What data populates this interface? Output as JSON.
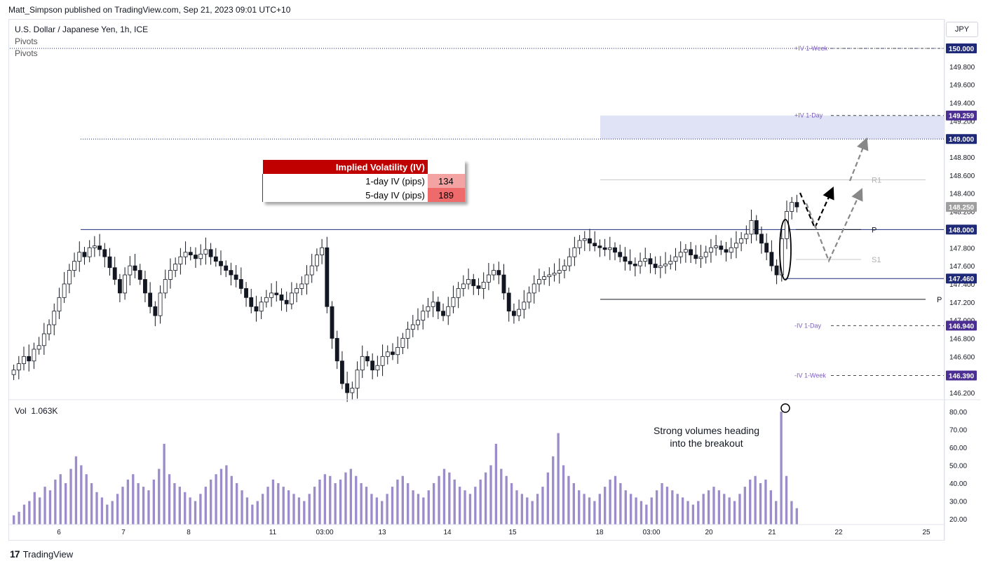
{
  "header": {
    "publisher": "Matt_Simpson published on TradingView.com, Sep 21, 2023 09:01 UTC+10",
    "symbol": "U.S. Dollar / Japanese Yen, 1h, ICE",
    "indicator1": "Pivots",
    "indicator2": "Pivots",
    "currency_button": "JPY"
  },
  "iv_table": {
    "title": "Implied Volatility (IV)",
    "row1_label": "1-day IV (pips)",
    "row1_value": "134",
    "row2_label": "5-day IV (pips)",
    "row2_value": "189"
  },
  "volume": {
    "label": "Vol",
    "value": "1.063K",
    "annotation_line1": "Strong volumes heading",
    "annotation_line2": "into the breakout"
  },
  "footer": {
    "brand": "TradingView"
  },
  "colors": {
    "candle": "#131722",
    "volume": "#9c8cc9",
    "level_line": "#1e2a78",
    "iv_label": "#7b5cc0",
    "iv_zone": "#dfe3f5",
    "iv_header": "#c00000"
  },
  "chart_data": [
    {
      "type": "candlestick",
      "title": "U.S. Dollar / Japanese Yen, 1h, ICE",
      "price_axis": {
        "ticks": [
          "149.800",
          "149.600",
          "149.400",
          "149.200",
          "149.000",
          "148.800",
          "148.600",
          "148.400",
          "148.200",
          "148.000",
          "147.800",
          "147.600",
          "147.400",
          "147.200",
          "147.000",
          "146.800",
          "146.600",
          "146.400",
          "146.200"
        ],
        "ylim": [
          146.1,
          150.2
        ]
      },
      "time_axis": {
        "ticks": [
          "6",
          "7",
          "8",
          "11",
          "03:00",
          "13",
          "14",
          "15",
          "18",
          "03:00",
          "20",
          "21",
          "22",
          "25"
        ]
      },
      "price_labels": [
        {
          "value": "150.000",
          "style": "dark"
        },
        {
          "value": "149.259",
          "style": "purple"
        },
        {
          "value": "149.000",
          "style": "dark"
        },
        {
          "value": "148.250",
          "style": "gray"
        },
        {
          "value": "148.000",
          "style": "dark"
        },
        {
          "value": "147.460",
          "style": "dark"
        },
        {
          "value": "146.940",
          "style": "purple"
        },
        {
          "value": "146.390",
          "style": "purple"
        }
      ],
      "levels": [
        {
          "price": 150.0,
          "style": "dotted",
          "label": ""
        },
        {
          "price": 149.0,
          "style": "dotted",
          "label": ""
        },
        {
          "price": 148.0,
          "style": "solid",
          "label": ""
        },
        {
          "price": 147.46,
          "style": "solid-short",
          "label": ""
        }
      ],
      "iv_levels": [
        {
          "price": 150.0,
          "label": "+IV 1-Week"
        },
        {
          "price": 149.259,
          "label": "+IV 1-Day"
        },
        {
          "price": 146.94,
          "label": "-IV 1-Day"
        },
        {
          "price": 146.39,
          "label": "-IV 1-Week"
        }
      ],
      "pivots": [
        {
          "price": 148.55,
          "label": "R1"
        },
        {
          "price": 148.0,
          "label": "P"
        },
        {
          "price": 147.67,
          "label": "S1"
        },
        {
          "price": 147.23,
          "label": "P"
        }
      ],
      "series_close": [
        146.45,
        146.52,
        146.6,
        146.55,
        146.68,
        146.72,
        146.85,
        146.95,
        147.1,
        147.25,
        147.4,
        147.55,
        147.65,
        147.75,
        147.7,
        147.8,
        147.82,
        147.78,
        147.7,
        147.58,
        147.45,
        147.3,
        147.5,
        147.6,
        147.55,
        147.45,
        147.3,
        147.15,
        147.05,
        147.3,
        147.45,
        147.55,
        147.62,
        147.7,
        147.75,
        147.72,
        147.68,
        147.73,
        147.78,
        147.7,
        147.65,
        147.6,
        147.55,
        147.5,
        147.45,
        147.35,
        147.25,
        147.15,
        147.1,
        147.2,
        147.25,
        147.3,
        147.28,
        147.22,
        147.18,
        147.3,
        147.35,
        147.4,
        147.5,
        147.6,
        147.72,
        147.8,
        147.15,
        146.8,
        146.55,
        146.3,
        146.2,
        146.25,
        146.45,
        146.6,
        146.55,
        146.45,
        146.5,
        146.6,
        146.65,
        146.62,
        146.7,
        146.8,
        146.9,
        146.95,
        147.0,
        147.1,
        147.15,
        147.2,
        147.1,
        147.05,
        147.15,
        147.25,
        147.35,
        147.4,
        147.45,
        147.38,
        147.35,
        147.42,
        147.5,
        147.55,
        147.5,
        147.3,
        147.1,
        147.05,
        147.12,
        147.2,
        147.3,
        147.4,
        147.45,
        147.48,
        147.5,
        147.52,
        147.55,
        147.6,
        147.7,
        147.8,
        147.88,
        147.9,
        147.85,
        147.82,
        147.8,
        147.78,
        147.8,
        147.75,
        147.7,
        147.65,
        147.62,
        147.6,
        147.65,
        147.68,
        147.62,
        147.58,
        147.6,
        147.62,
        147.65,
        147.7,
        147.75,
        147.78,
        147.72,
        147.68,
        147.7,
        147.75,
        147.8,
        147.82,
        147.78,
        147.75,
        147.8,
        147.85,
        147.9,
        147.95,
        148.1,
        147.95,
        147.85,
        147.75,
        147.6,
        147.5,
        147.9,
        148.2,
        148.3,
        148.25
      ]
    },
    {
      "type": "bar",
      "title": "Vol",
      "y_axis": {
        "ticks": [
          "80.00",
          "70.00",
          "60.00",
          "50.00",
          "40.00",
          "30.00",
          "20.00"
        ],
        "ylim": [
          18,
          84
        ]
      },
      "values": [
        22,
        24,
        28,
        30,
        35,
        32,
        38,
        36,
        42,
        45,
        40,
        48,
        55,
        50,
        45,
        40,
        35,
        32,
        28,
        30,
        34,
        38,
        42,
        45,
        40,
        38,
        36,
        42,
        48,
        62,
        45,
        40,
        38,
        35,
        32,
        30,
        34,
        38,
        42,
        45,
        48,
        50,
        44,
        40,
        36,
        32,
        28,
        30,
        34,
        38,
        42,
        40,
        38,
        36,
        34,
        32,
        30,
        34,
        38,
        42,
        45,
        44,
        40,
        42,
        46,
        48,
        44,
        40,
        38,
        34,
        32,
        30,
        34,
        38,
        42,
        44,
        40,
        36,
        34,
        32,
        36,
        40,
        44,
        48,
        46,
        42,
        38,
        36,
        34,
        38,
        42,
        46,
        50,
        62,
        48,
        44,
        40,
        36,
        34,
        32,
        30,
        34,
        38,
        46,
        55,
        68,
        50,
        44,
        40,
        36,
        34,
        32,
        30,
        34,
        38,
        42,
        44,
        40,
        36,
        34,
        32,
        30,
        28,
        32,
        36,
        40,
        38,
        36,
        34,
        32,
        30,
        28,
        30,
        34,
        36,
        38,
        36,
        34,
        32,
        30,
        34,
        38,
        42,
        44,
        40,
        42,
        36,
        30,
        80,
        44,
        30,
        26
      ]
    }
  ]
}
